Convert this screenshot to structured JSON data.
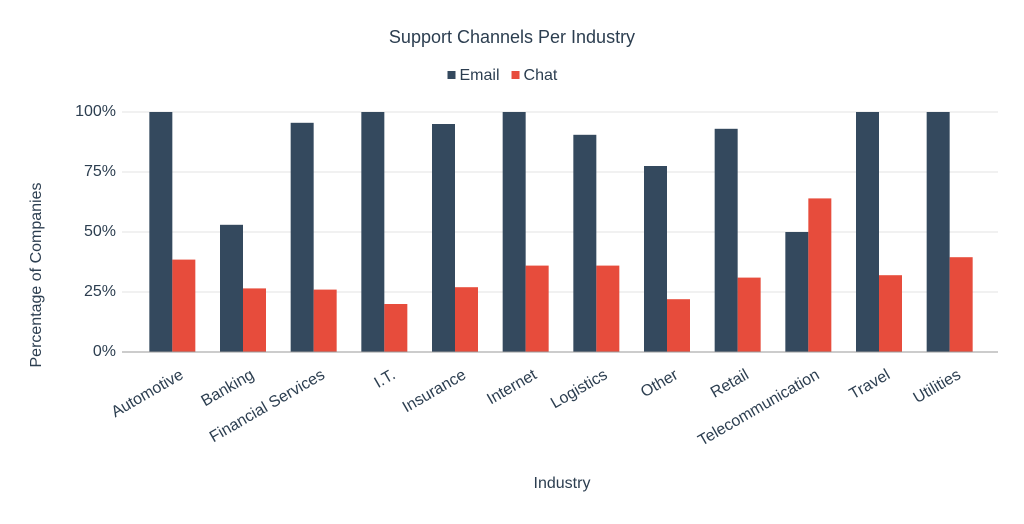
{
  "chart_data": {
    "type": "bar",
    "title": "Support Channels Per Industry",
    "x_label": "Industry",
    "y_label": "Percentage of Companies",
    "categories": [
      "Automotive",
      "Banking",
      "Financial Services",
      "I.T.",
      "Insurance",
      "Internet",
      "Logistics",
      "Other",
      "Retail",
      "Telecommunication",
      "Travel",
      "Utilities"
    ],
    "series": [
      {
        "name": "Email",
        "color": "#34495e",
        "values": [
          100,
          53,
          95.5,
          100,
          95,
          100,
          90.5,
          77.5,
          93,
          50,
          100,
          100
        ]
      },
      {
        "name": "Chat",
        "color": "#e74c3c",
        "values": [
          38.5,
          26.5,
          26,
          20,
          27,
          36,
          36,
          22,
          31,
          64,
          32,
          39.5
        ]
      }
    ],
    "ylim": [
      0,
      100
    ],
    "yticks": [
      {
        "value": 0,
        "label": "0%"
      },
      {
        "value": 25,
        "label": "25%"
      },
      {
        "value": 50,
        "label": "50%"
      },
      {
        "value": 75,
        "label": "75%"
      },
      {
        "value": 100,
        "label": "100%"
      }
    ],
    "grid": true,
    "legend": "top"
  }
}
